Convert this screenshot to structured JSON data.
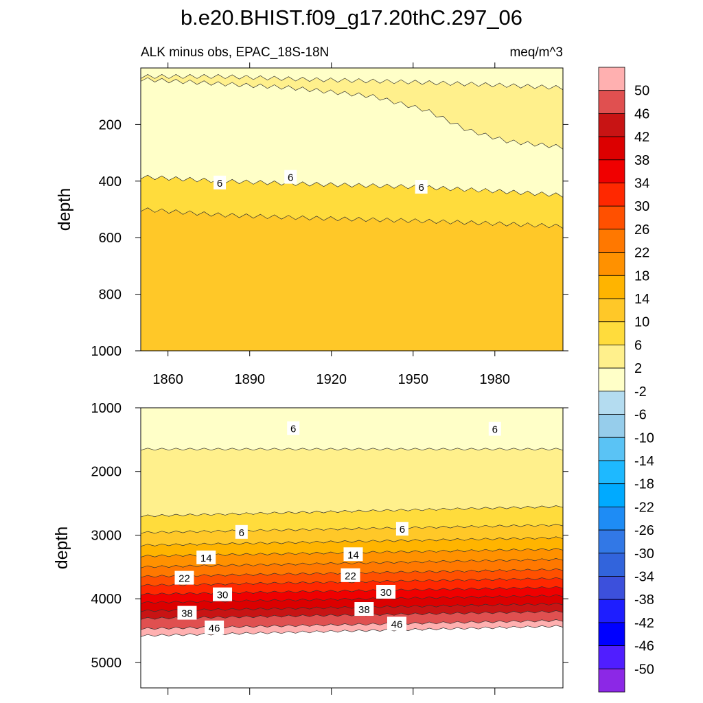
{
  "chart_data": [
    {
      "type": "contour",
      "panel": "upper",
      "title": "b.e20.BHIST.f09_g17.20thC.297_06",
      "left_subtitle": "ALK minus obs, EPAC_18S-18N",
      "right_subtitle": "meq/m^3",
      "ylabel": "depth",
      "xlim": [
        1850,
        2005
      ],
      "ylim": [
        0,
        1000
      ],
      "y_reversed": true,
      "x_ticks": [
        1860,
        1890,
        1920,
        1950,
        1980
      ],
      "x_tick_labels": [
        "1860",
        "1890",
        "1920",
        "1950",
        "1980"
      ],
      "y_ticks": [
        200,
        400,
        600,
        800,
        1000
      ],
      "y_tick_labels": [
        "200",
        "400",
        "600",
        "800",
        "1000"
      ],
      "band_levels": [
        -10,
        -6,
        -2,
        2,
        6,
        10
      ],
      "band_boundaries": [
        {
          "level": -2,
          "x": [
            1850,
            1905,
            1935,
            1955,
            1970,
            1985,
            2005
          ],
          "depth": [
            40,
            70,
            100,
            150,
            220,
            260,
            280
          ]
        },
        {
          "level": 2,
          "x": [
            1850,
            1880,
            1910,
            1950,
            1980,
            2005
          ],
          "depth": [
            30,
            30,
            40,
            50,
            60,
            70
          ]
        },
        {
          "level": 6,
          "x": [
            1850,
            1880,
            1910,
            1950,
            1980,
            2005
          ],
          "depth": [
            385,
            400,
            410,
            420,
            435,
            450
          ]
        },
        {
          "level": 10,
          "x": [
            1850,
            1880,
            1910,
            1950,
            1980,
            2005
          ],
          "depth": [
            500,
            520,
            530,
            540,
            550,
            560
          ]
        }
      ],
      "contour_labels": [
        {
          "text": "6",
          "x": 1879,
          "depth": 405
        },
        {
          "text": "6",
          "x": 1905,
          "depth": 385
        },
        {
          "text": "6",
          "x": 1953,
          "depth": 420
        }
      ]
    },
    {
      "type": "contour",
      "panel": "lower",
      "ylabel": "depth",
      "xlim": [
        1850,
        2005
      ],
      "ylim": [
        1000,
        5400
      ],
      "y_reversed": true,
      "y_ticks": [
        1000,
        2000,
        3000,
        4000,
        5000
      ],
      "y_tick_labels": [
        "1000",
        "2000",
        "3000",
        "4000",
        "5000"
      ],
      "band_boundaries": [
        {
          "level": 2,
          "x": [
            1850,
            2005
          ],
          "depth": [
            1650,
            1650
          ]
        },
        {
          "level": 6,
          "x": [
            1850,
            2005
          ],
          "depth": [
            2700,
            2550
          ]
        },
        {
          "level": 10,
          "x": [
            1850,
            2005
          ],
          "depth": [
            2960,
            2840
          ]
        },
        {
          "level": 14,
          "x": [
            1850,
            2005
          ],
          "depth": [
            3160,
            3040
          ]
        },
        {
          "level": 18,
          "x": [
            1850,
            2005
          ],
          "depth": [
            3330,
            3220
          ]
        },
        {
          "level": 22,
          "x": [
            1850,
            2005
          ],
          "depth": [
            3500,
            3380
          ]
        },
        {
          "level": 26,
          "x": [
            1850,
            2005
          ],
          "depth": [
            3650,
            3540
          ]
        },
        {
          "level": 30,
          "x": [
            1850,
            2005
          ],
          "depth": [
            3790,
            3680
          ]
        },
        {
          "level": 34,
          "x": [
            1850,
            2005
          ],
          "depth": [
            3930,
            3820
          ]
        },
        {
          "level": 38,
          "x": [
            1850,
            2005
          ],
          "depth": [
            4060,
            3950
          ]
        },
        {
          "level": 42,
          "x": [
            1850,
            2005
          ],
          "depth": [
            4190,
            4080
          ]
        },
        {
          "level": 46,
          "x": [
            1850,
            2005
          ],
          "depth": [
            4310,
            4200
          ]
        },
        {
          "level": 50,
          "x": [
            1850,
            2005
          ],
          "depth": [
            4470,
            4340
          ]
        },
        {
          "level": 54,
          "x": [
            1850,
            2005
          ],
          "depth": [
            4580,
            4430
          ]
        }
      ],
      "contour_labels": [
        {
          "text": "6",
          "x": 1906,
          "depth": 1320
        },
        {
          "text": "6",
          "x": 1980,
          "depth": 1330
        },
        {
          "text": "6",
          "x": 1887,
          "depth": 2950
        },
        {
          "text": "6",
          "x": 1946,
          "depth": 2900
        },
        {
          "text": "14",
          "x": 1874,
          "depth": 3350
        },
        {
          "text": "14",
          "x": 1928,
          "depth": 3300
        },
        {
          "text": "22",
          "x": 1866,
          "depth": 3670
        },
        {
          "text": "22",
          "x": 1927,
          "depth": 3630
        },
        {
          "text": "30",
          "x": 1880,
          "depth": 3930
        },
        {
          "text": "30",
          "x": 1940,
          "depth": 3890
        },
        {
          "text": "38",
          "x": 1867,
          "depth": 4220
        },
        {
          "text": "38",
          "x": 1932,
          "depth": 4160
        },
        {
          "text": "46",
          "x": 1877,
          "depth": 4450
        },
        {
          "text": "46",
          "x": 1944,
          "depth": 4390
        }
      ]
    },
    {
      "type": "colorbar",
      "labels": [
        "50",
        "46",
        "42",
        "38",
        "34",
        "30",
        "26",
        "22",
        "18",
        "14",
        "10",
        "6",
        "2",
        "-2",
        "-6",
        "-10",
        "-14",
        "-18",
        "-22",
        "-26",
        "-30",
        "-34",
        "-38",
        "-42",
        "-46",
        "-50"
      ],
      "level_values": [
        50,
        46,
        42,
        38,
        34,
        30,
        26,
        22,
        18,
        14,
        10,
        6,
        2,
        -2,
        -6,
        -10,
        -14,
        -18,
        -22,
        -26,
        -30,
        -34,
        -38,
        -42,
        -46,
        -50
      ],
      "colors": [
        "#ffb0b0",
        "#e05050",
        "#c81414",
        "#dc0000",
        "#f00000",
        "#ff2800",
        "#ff5000",
        "#ff7800",
        "#ff9100",
        "#ffb400",
        "#ffc828",
        "#ffdc3c",
        "#fff08c",
        "#ffffc8",
        "#b4dcf0",
        "#96cdeb",
        "#5ac3f5",
        "#1eb9ff",
        "#00aaff",
        "#1e8cf5",
        "#3278e6",
        "#3264dc",
        "#3c50dc",
        "#1e1eff",
        "#0000ff",
        "#501eff",
        "#8c28e6"
      ]
    }
  ]
}
